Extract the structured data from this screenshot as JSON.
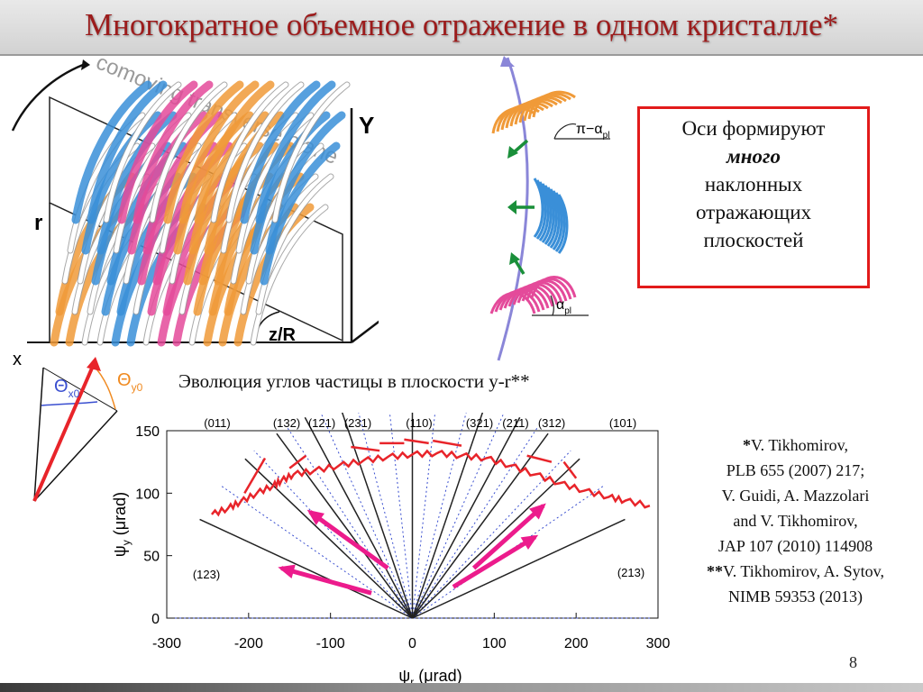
{
  "slide": {
    "title": "Многократное объемное отражение в одном кристалле*",
    "page_number": "8"
  },
  "callout": {
    "line1": "Оси формируют",
    "line2": "много",
    "line3": "наклонных",
    "line4": "отражающих",
    "line5": "плоскостей",
    "border_color": "#e21b1b"
  },
  "figure3d": {
    "plane_label": "comoving transverse plane",
    "axis_y": "Y",
    "axis_r": "r",
    "axis_z": "z",
    "axis_zr": "z/R",
    "axis_x": "x"
  },
  "angles": {
    "theta_x0": "Θ",
    "theta_x0_sub": "x0",
    "theta_y0": "Θ",
    "theta_y0_sub": "y0"
  },
  "planes_fig": {
    "label_top": "π−α",
    "label_top_sub": "pl",
    "label_bottom": "α",
    "label_bottom_sub": "pl"
  },
  "chart_subtitle": "Эволюция углов частицы в плоскости y-r**",
  "references": {
    "l1_mark": "*",
    "l1": "V. Tikhomirov,",
    "l2": "PLB 655 (2007) 217;",
    "l3": "V. Guidi, A. Mazzolari",
    "l4": "and V. Tikhomirov,",
    "l5": "JAP 107 (2010) 114908",
    "l6_mark": "**",
    "l6": "V. Tikhomirov, A. Sytov,",
    "l7": "NIMB 59353  (2013)"
  },
  "chart_data": {
    "type": "line",
    "xlabel": "ψr (μrad)",
    "xlabel_main": "ψ",
    "xlabel_sub": "r",
    "xlabel_unit": " (μrad)",
    "ylabel_main": "ψ",
    "ylabel_sub": "y",
    "ylabel_unit": " (μrad)",
    "xlim": [
      -300,
      300
    ],
    "ylim": [
      0,
      150
    ],
    "x_ticks": [
      "-300",
      "-200",
      "-100",
      "0",
      "100",
      "200",
      "300"
    ],
    "y_ticks": [
      "0",
      "50",
      "100",
      "150"
    ],
    "plane_labels": [
      "(011)",
      "(132)",
      "(121)",
      "(231)",
      "(110)",
      "(321)",
      "(211)",
      "(312)",
      "(101)",
      "(123)",
      "(213)"
    ],
    "planes_solid_angles_deg": [
      26,
      45,
      55,
      63,
      72,
      90,
      108,
      117,
      125,
      135,
      154
    ],
    "planes_dashed_angles_deg": [
      36,
      48,
      58,
      67,
      76,
      84,
      96,
      104,
      113,
      122,
      132,
      144
    ],
    "trajectory": {
      "x": [
        -245,
        -225,
        -210,
        -190,
        -170,
        -160,
        -145,
        -120,
        -90,
        -60,
        -30,
        0,
        30,
        60,
        90,
        120,
        150,
        180,
        210,
        240,
        260,
        290
      ],
      "y": [
        83,
        88,
        93,
        100,
        106,
        110,
        115,
        118,
        122,
        126,
        129,
        131,
        132,
        130,
        128,
        122,
        115,
        108,
        102,
        97,
        94,
        90
      ]
    },
    "colors": {
      "trajectory": "#e8242a",
      "magenta_arrows": "#ec1b8c",
      "planes": "#222222",
      "dashed": "#3a4fd0"
    }
  }
}
